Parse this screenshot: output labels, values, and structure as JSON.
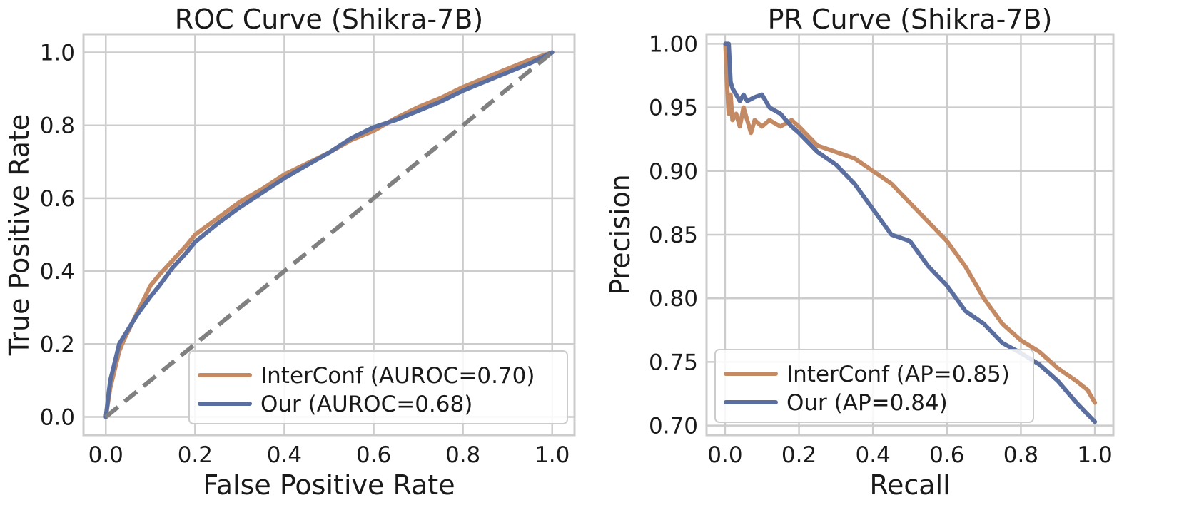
{
  "chart_data": [
    {
      "type": "line",
      "title": "ROC Curve (Shikra-7B)",
      "xlabel": "False Positive Rate",
      "ylabel": "True Positive Rate",
      "xlim": [
        -0.05,
        1.05
      ],
      "ylim": [
        -0.05,
        1.05
      ],
      "xticks": [
        "0.0",
        "0.2",
        "0.4",
        "0.6",
        "0.8",
        "1.0"
      ],
      "yticks": [
        "0.0",
        "0.2",
        "0.4",
        "0.6",
        "0.8",
        "1.0"
      ],
      "grid": true,
      "legend_position": "lower-right",
      "series": [
        {
          "name": "InterConf (AUROC=0.70)",
          "color": "#c48a64",
          "points": [
            [
              0,
              0
            ],
            [
              0.005,
              0.04
            ],
            [
              0.01,
              0.08
            ],
            [
              0.02,
              0.13
            ],
            [
              0.03,
              0.18
            ],
            [
              0.04,
              0.21
            ],
            [
              0.06,
              0.26
            ],
            [
              0.08,
              0.31
            ],
            [
              0.1,
              0.36
            ],
            [
              0.12,
              0.39
            ],
            [
              0.15,
              0.43
            ],
            [
              0.18,
              0.47
            ],
            [
              0.2,
              0.5
            ],
            [
              0.25,
              0.545
            ],
            [
              0.3,
              0.59
            ],
            [
              0.35,
              0.625
            ],
            [
              0.4,
              0.665
            ],
            [
              0.45,
              0.695
            ],
            [
              0.5,
              0.725
            ],
            [
              0.55,
              0.76
            ],
            [
              0.6,
              0.785
            ],
            [
              0.65,
              0.82
            ],
            [
              0.7,
              0.85
            ],
            [
              0.75,
              0.875
            ],
            [
              0.8,
              0.905
            ],
            [
              0.85,
              0.93
            ],
            [
              0.9,
              0.955
            ],
            [
              0.95,
              0.98
            ],
            [
              1.0,
              1.0
            ]
          ]
        },
        {
          "name": "Our (AUROC=0.68)",
          "color": "#5a6fa0",
          "points": [
            [
              0,
              0
            ],
            [
              0.005,
              0.05
            ],
            [
              0.01,
              0.1
            ],
            [
              0.02,
              0.15
            ],
            [
              0.03,
              0.2
            ],
            [
              0.05,
              0.24
            ],
            [
              0.07,
              0.28
            ],
            [
              0.1,
              0.33
            ],
            [
              0.12,
              0.36
            ],
            [
              0.15,
              0.41
            ],
            [
              0.18,
              0.45
            ],
            [
              0.2,
              0.48
            ],
            [
              0.25,
              0.53
            ],
            [
              0.3,
              0.575
            ],
            [
              0.35,
              0.615
            ],
            [
              0.4,
              0.655
            ],
            [
              0.45,
              0.69
            ],
            [
              0.5,
              0.725
            ],
            [
              0.55,
              0.765
            ],
            [
              0.6,
              0.795
            ],
            [
              0.65,
              0.815
            ],
            [
              0.7,
              0.84
            ],
            [
              0.75,
              0.865
            ],
            [
              0.8,
              0.895
            ],
            [
              0.85,
              0.92
            ],
            [
              0.9,
              0.945
            ],
            [
              0.95,
              0.97
            ],
            [
              1.0,
              1.0
            ]
          ]
        },
        {
          "name": "",
          "color": "#808080",
          "dashed": true,
          "points": [
            [
              0,
              0
            ],
            [
              1,
              1
            ]
          ]
        }
      ]
    },
    {
      "type": "line",
      "title": "PR Curve (Shikra-7B)",
      "xlabel": "Recall",
      "ylabel": "Precision",
      "xlim": [
        -0.05,
        1.05
      ],
      "ylim": [
        0.6925,
        1.0075
      ],
      "xticks": [
        "0.0",
        "0.2",
        "0.4",
        "0.6",
        "0.8",
        "1.0"
      ],
      "yticks": [
        "0.70",
        "0.75",
        "0.80",
        "0.85",
        "0.90",
        "0.95",
        "1.00"
      ],
      "grid": true,
      "legend_position": "lower-left",
      "series": [
        {
          "name": "InterConf (AP=0.85)",
          "color": "#c48a64",
          "points": [
            [
              0.001,
              1.0
            ],
            [
              0.005,
              0.97
            ],
            [
              0.01,
              0.945
            ],
            [
              0.015,
              0.96
            ],
            [
              0.02,
              0.94
            ],
            [
              0.03,
              0.945
            ],
            [
              0.04,
              0.935
            ],
            [
              0.05,
              0.95
            ],
            [
              0.06,
              0.94
            ],
            [
              0.07,
              0.93
            ],
            [
              0.08,
              0.94
            ],
            [
              0.1,
              0.935
            ],
            [
              0.12,
              0.94
            ],
            [
              0.15,
              0.935
            ],
            [
              0.18,
              0.94
            ],
            [
              0.2,
              0.935
            ],
            [
              0.25,
              0.92
            ],
            [
              0.3,
              0.915
            ],
            [
              0.35,
              0.91
            ],
            [
              0.4,
              0.9
            ],
            [
              0.45,
              0.89
            ],
            [
              0.5,
              0.875
            ],
            [
              0.55,
              0.86
            ],
            [
              0.6,
              0.845
            ],
            [
              0.65,
              0.825
            ],
            [
              0.7,
              0.8
            ],
            [
              0.75,
              0.78
            ],
            [
              0.8,
              0.767
            ],
            [
              0.85,
              0.758
            ],
            [
              0.9,
              0.745
            ],
            [
              0.95,
              0.735
            ],
            [
              0.98,
              0.728
            ],
            [
              1.0,
              0.718
            ]
          ]
        },
        {
          "name": "Our (AP=0.84)",
          "color": "#5a6fa0",
          "points": [
            [
              0.001,
              1.0
            ],
            [
              0.01,
              1.0
            ],
            [
              0.015,
              0.97
            ],
            [
              0.02,
              0.965
            ],
            [
              0.03,
              0.96
            ],
            [
              0.04,
              0.955
            ],
            [
              0.05,
              0.96
            ],
            [
              0.06,
              0.955
            ],
            [
              0.08,
              0.958
            ],
            [
              0.1,
              0.96
            ],
            [
              0.12,
              0.95
            ],
            [
              0.15,
              0.945
            ],
            [
              0.18,
              0.935
            ],
            [
              0.2,
              0.93
            ],
            [
              0.25,
              0.915
            ],
            [
              0.3,
              0.905
            ],
            [
              0.35,
              0.89
            ],
            [
              0.4,
              0.87
            ],
            [
              0.45,
              0.85
            ],
            [
              0.5,
              0.845
            ],
            [
              0.55,
              0.825
            ],
            [
              0.6,
              0.81
            ],
            [
              0.65,
              0.79
            ],
            [
              0.7,
              0.78
            ],
            [
              0.75,
              0.765
            ],
            [
              0.8,
              0.757
            ],
            [
              0.85,
              0.748
            ],
            [
              0.9,
              0.735
            ],
            [
              0.95,
              0.718
            ],
            [
              1.0,
              0.703
            ]
          ]
        }
      ]
    }
  ]
}
